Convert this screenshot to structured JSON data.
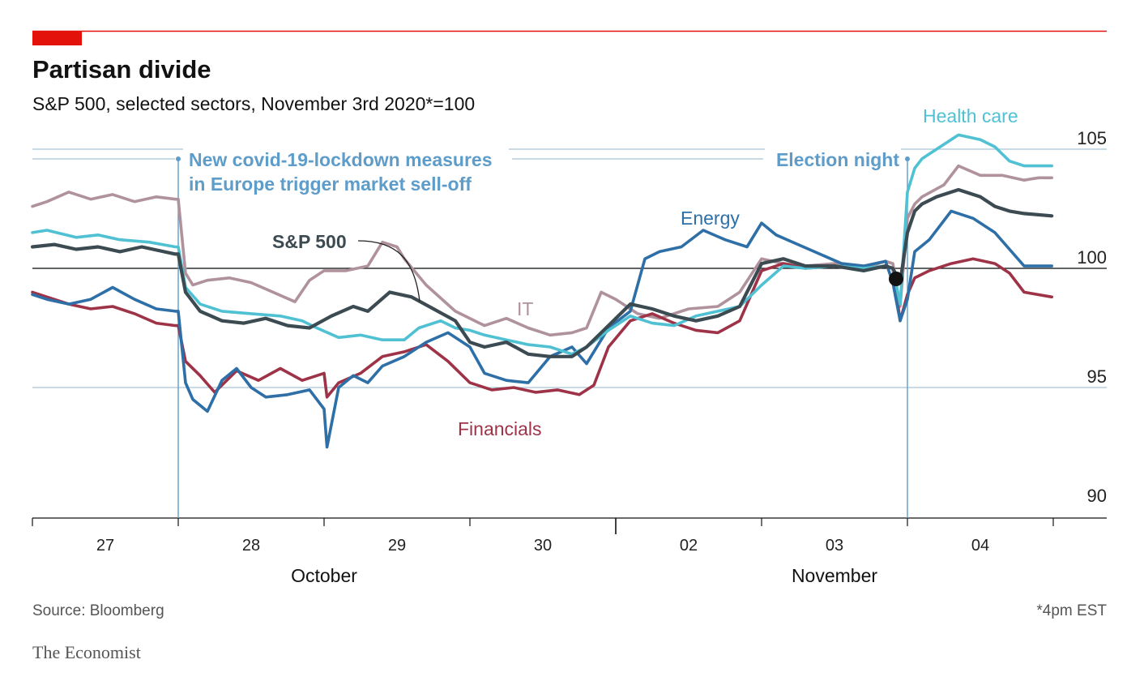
{
  "title": "Partisan divide",
  "subtitle": "S&P 500, selected sectors, November 3rd 2020*=100",
  "source": "Source: Bloomberg",
  "footnote": "*4pm EST",
  "brand": "The Economist",
  "annotations": {
    "lockdown_line1": "New covid-19-lockdown measures",
    "lockdown_line2": "in Europe trigger market sell-off",
    "election": "Election night"
  },
  "colors": {
    "accent_red": "#e3120b",
    "health_care": "#4fc1d3",
    "it": "#b0929c",
    "sp500": "#3c4b52",
    "energy": "#2d6fa6",
    "financials": "#9e3348",
    "annotation": "#5e9cc9",
    "grid": "#a7c4d6"
  },
  "chart_data": {
    "type": "line",
    "ylim": [
      90,
      106
    ],
    "y_ticks": [
      "90",
      "95",
      "100",
      "105"
    ],
    "x_ticks": [
      "27",
      "28",
      "29",
      "30",
      "02",
      "03",
      "04"
    ],
    "months": [
      "October",
      "November"
    ],
    "baseline": 100,
    "series": [
      {
        "name": "IT",
        "key": "it",
        "x": [
          0.0,
          0.1,
          0.25,
          0.4,
          0.55,
          0.7,
          0.85,
          0.98,
          1.0,
          1.05,
          1.1,
          1.2,
          1.35,
          1.5,
          1.8,
          1.9,
          2.0,
          2.15,
          2.3,
          2.4,
          2.5,
          2.55,
          2.7,
          2.9,
          3.0,
          3.1,
          3.25,
          3.4,
          3.55,
          3.7,
          3.8,
          3.9,
          4.0,
          4.15,
          4.3,
          4.5,
          4.7,
          4.85,
          5.0,
          5.15,
          5.3,
          5.5,
          5.7,
          5.85,
          5.9,
          5.95,
          6.0,
          6.05,
          6.1,
          6.25,
          6.35,
          6.5,
          6.65,
          6.8,
          6.9,
          6.99
        ],
        "y": [
          102.6,
          102.8,
          103.2,
          102.9,
          103.1,
          102.8,
          103.0,
          102.9,
          102.9,
          99.8,
          99.3,
          99.5,
          99.6,
          99.4,
          98.6,
          99.5,
          99.9,
          99.9,
          100.1,
          101.1,
          100.9,
          100.4,
          99.3,
          98.2,
          97.9,
          97.6,
          97.9,
          97.5,
          97.2,
          97.3,
          97.5,
          99.0,
          98.7,
          98.1,
          97.9,
          98.3,
          98.4,
          99.0,
          100.4,
          100.2,
          100.1,
          100.2,
          100.0,
          100.3,
          100.2,
          98.4,
          102.1,
          102.7,
          103.0,
          103.5,
          104.3,
          103.9,
          103.9,
          103.7,
          103.8,
          103.8
        ]
      },
      {
        "name": "Health care",
        "key": "health",
        "x": [
          0.0,
          0.1,
          0.3,
          0.45,
          0.6,
          0.8,
          0.98,
          1.0,
          1.05,
          1.15,
          1.3,
          1.5,
          1.7,
          1.85,
          1.95,
          2.1,
          2.25,
          2.4,
          2.55,
          2.65,
          2.8,
          2.9,
          3.0,
          3.1,
          3.25,
          3.4,
          3.55,
          3.7,
          3.8,
          3.95,
          4.1,
          4.25,
          4.4,
          4.55,
          4.7,
          4.85,
          5.0,
          5.15,
          5.3,
          5.5,
          5.7,
          5.85,
          5.9,
          5.95,
          6.0,
          6.05,
          6.1,
          6.2,
          6.35,
          6.5,
          6.6,
          6.7,
          6.8,
          6.99
        ],
        "y": [
          101.5,
          101.6,
          101.3,
          101.4,
          101.2,
          101.1,
          100.9,
          100.9,
          99.2,
          98.5,
          98.2,
          98.1,
          98.0,
          97.8,
          97.5,
          97.1,
          97.2,
          97.0,
          97.0,
          97.5,
          97.8,
          97.5,
          97.4,
          97.2,
          97.0,
          96.8,
          96.7,
          96.4,
          96.7,
          97.4,
          98.0,
          97.7,
          97.6,
          98.0,
          98.2,
          98.4,
          99.3,
          100.1,
          100.0,
          100.1,
          100.0,
          100.1,
          100.0,
          98.5,
          103.2,
          104.2,
          104.6,
          105.0,
          105.6,
          105.4,
          105.1,
          104.5,
          104.3,
          104.3
        ]
      },
      {
        "name": "S&P 500",
        "key": "sp500",
        "x": [
          0.0,
          0.15,
          0.3,
          0.45,
          0.6,
          0.75,
          0.98,
          1.0,
          1.05,
          1.15,
          1.3,
          1.45,
          1.6,
          1.75,
          1.9,
          2.05,
          2.2,
          2.3,
          2.45,
          2.6,
          2.75,
          2.9,
          3.0,
          3.1,
          3.25,
          3.4,
          3.55,
          3.7,
          3.8,
          3.95,
          4.1,
          4.25,
          4.4,
          4.55,
          4.7,
          4.85,
          5.0,
          5.15,
          5.3,
          5.5,
          5.7,
          5.85,
          5.9,
          5.95,
          6.0,
          6.05,
          6.1,
          6.2,
          6.35,
          6.5,
          6.6,
          6.7,
          6.8,
          6.99
        ],
        "y": [
          100.9,
          101.0,
          100.8,
          100.9,
          100.7,
          100.9,
          100.6,
          100.6,
          99.0,
          98.2,
          97.8,
          97.7,
          97.9,
          97.6,
          97.5,
          98.0,
          98.4,
          98.2,
          99.0,
          98.8,
          98.3,
          97.8,
          96.9,
          96.7,
          96.9,
          96.4,
          96.3,
          96.3,
          96.7,
          97.6,
          98.5,
          98.3,
          98.0,
          97.8,
          98.0,
          98.4,
          100.2,
          100.4,
          100.1,
          100.1,
          99.9,
          100.1,
          100.0,
          99.4,
          101.5,
          102.4,
          102.7,
          103.0,
          103.3,
          103.0,
          102.6,
          102.4,
          102.3,
          102.2
        ]
      },
      {
        "name": "Energy",
        "key": "energy",
        "x": [
          0.0,
          0.1,
          0.25,
          0.4,
          0.55,
          0.7,
          0.85,
          0.98,
          1.0,
          1.05,
          1.1,
          1.2,
          1.3,
          1.4,
          1.5,
          1.6,
          1.75,
          1.9,
          2.0,
          2.02,
          2.1,
          2.2,
          2.3,
          2.4,
          2.55,
          2.7,
          2.85,
          3.0,
          3.1,
          3.25,
          3.4,
          3.55,
          3.7,
          3.8,
          3.95,
          4.1,
          4.2,
          4.3,
          4.45,
          4.6,
          4.75,
          4.9,
          5.0,
          5.1,
          5.25,
          5.4,
          5.55,
          5.7,
          5.85,
          5.9,
          5.95,
          6.0,
          6.05,
          6.15,
          6.3,
          6.45,
          6.6,
          6.7,
          6.8,
          6.99
        ],
        "y": [
          98.9,
          98.7,
          98.5,
          98.7,
          99.2,
          98.7,
          98.3,
          98.2,
          98.2,
          95.2,
          94.5,
          94.0,
          95.3,
          95.8,
          95.0,
          94.6,
          94.7,
          94.9,
          94.1,
          92.5,
          95.0,
          95.5,
          95.2,
          95.9,
          96.3,
          96.9,
          97.3,
          96.7,
          95.6,
          95.3,
          95.2,
          96.3,
          96.7,
          96.0,
          97.5,
          98.2,
          100.4,
          100.7,
          100.9,
          101.6,
          101.2,
          100.9,
          101.9,
          101.4,
          101.0,
          100.6,
          100.2,
          100.1,
          100.3,
          99.4,
          97.8,
          98.7,
          100.7,
          101.2,
          102.4,
          102.1,
          101.5,
          100.8,
          100.1,
          100.1
        ]
      },
      {
        "name": "Financials",
        "key": "financials",
        "x": [
          0.0,
          0.1,
          0.25,
          0.4,
          0.55,
          0.7,
          0.85,
          0.98,
          1.0,
          1.05,
          1.15,
          1.25,
          1.4,
          1.55,
          1.7,
          1.85,
          2.0,
          2.02,
          2.1,
          2.25,
          2.4,
          2.55,
          2.7,
          2.85,
          3.0,
          3.15,
          3.3,
          3.45,
          3.6,
          3.75,
          3.85,
          3.95,
          4.1,
          4.25,
          4.4,
          4.55,
          4.7,
          4.85,
          5.0,
          5.15,
          5.3,
          5.5,
          5.7,
          5.85,
          5.9,
          5.95,
          6.0,
          6.05,
          6.15,
          6.3,
          6.45,
          6.6,
          6.7,
          6.8,
          6.99
        ],
        "y": [
          99.0,
          98.8,
          98.5,
          98.3,
          98.4,
          98.1,
          97.7,
          97.6,
          97.6,
          96.1,
          95.5,
          94.8,
          95.7,
          95.3,
          95.8,
          95.3,
          95.6,
          94.6,
          95.2,
          95.6,
          96.3,
          96.5,
          96.8,
          96.1,
          95.2,
          94.9,
          95.0,
          94.8,
          94.9,
          94.7,
          95.1,
          96.7,
          97.8,
          98.1,
          97.7,
          97.4,
          97.3,
          97.8,
          99.9,
          100.2,
          100.0,
          100.1,
          99.9,
          100.1,
          100.0,
          97.8,
          98.9,
          99.6,
          99.9,
          100.2,
          100.4,
          100.2,
          99.8,
          99.0,
          98.8
        ]
      }
    ]
  }
}
